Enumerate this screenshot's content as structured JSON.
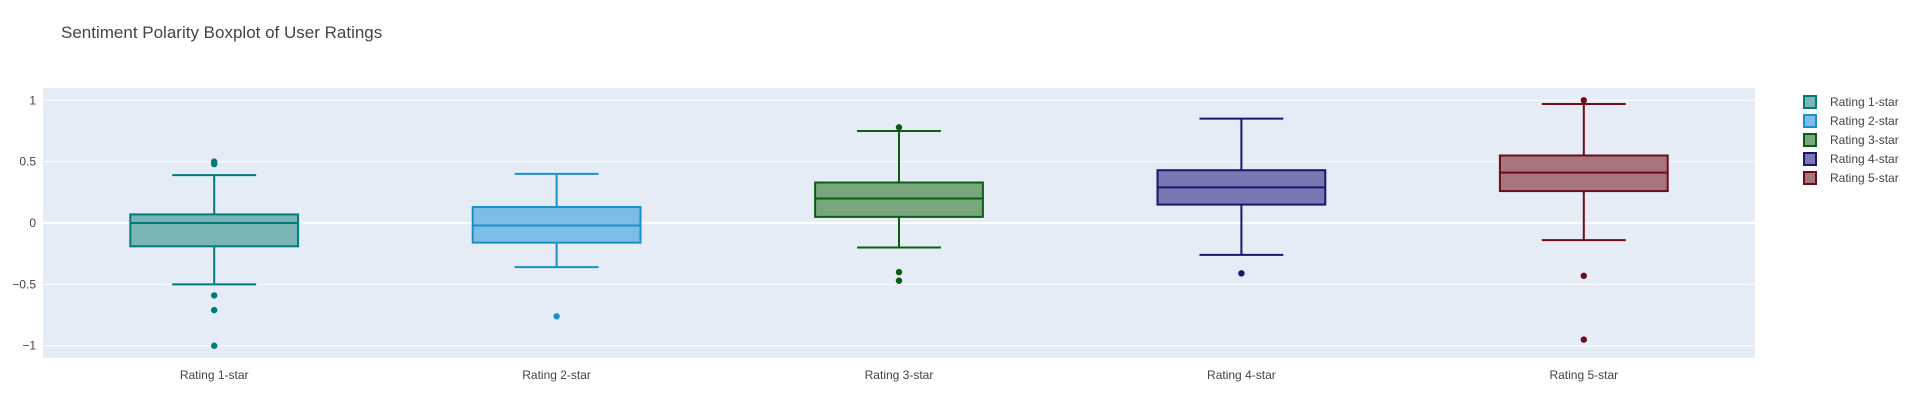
{
  "chart_data": {
    "type": "box",
    "title": "Sentiment Polarity Boxplot of User Ratings",
    "xlabel": "",
    "ylabel": "",
    "ylim": [
      -1.1,
      1.1
    ],
    "yticks": [
      {
        "value": 1,
        "label": "1"
      },
      {
        "value": 0.5,
        "label": "0.5"
      },
      {
        "value": 0,
        "label": "0"
      },
      {
        "value": -0.5,
        "label": "−0.5"
      },
      {
        "value": -1,
        "label": "−1"
      }
    ],
    "grid": true,
    "legend_position": "right",
    "series": [
      {
        "name": "Rating 1-star",
        "category": "Rating 1-star",
        "color": "#007a7a",
        "fill": "#7ab5b5",
        "lowerfence": -0.5,
        "q1": -0.19,
        "median": 0.0,
        "q3": 0.07,
        "upperfence": 0.39,
        "outliers": [
          0.5,
          0.48,
          -0.59,
          -0.71,
          -1.0
        ]
      },
      {
        "name": "Rating 2-star",
        "category": "Rating 2-star",
        "color": "#1a8fcc",
        "fill": "#7bbde6",
        "lowerfence": -0.36,
        "q1": -0.16,
        "median": -0.02,
        "q3": 0.13,
        "upperfence": 0.4,
        "outliers": [
          -0.76
        ]
      },
      {
        "name": "Rating 3-star",
        "category": "Rating 3-star",
        "color": "#0b5d16",
        "fill": "#7aa67e",
        "lowerfence": -0.2,
        "q1": 0.05,
        "median": 0.2,
        "q3": 0.33,
        "upperfence": 0.75,
        "outliers": [
          0.78,
          -0.4,
          -0.47
        ]
      },
      {
        "name": "Rating 4-star",
        "category": "Rating 4-star",
        "color": "#1b1570",
        "fill": "#7b77b3",
        "lowerfence": -0.26,
        "q1": 0.15,
        "median": 0.29,
        "q3": 0.43,
        "upperfence": 0.85,
        "outliers": [
          -0.41
        ]
      },
      {
        "name": "Rating 5-star",
        "category": "Rating 5-star",
        "color": "#6e0a1c",
        "fill": "#a6757e",
        "lowerfence": -0.14,
        "q1": 0.26,
        "median": 0.41,
        "q3": 0.55,
        "upperfence": 0.97,
        "outliers": [
          1.0,
          -0.43,
          -0.95
        ]
      }
    ]
  }
}
